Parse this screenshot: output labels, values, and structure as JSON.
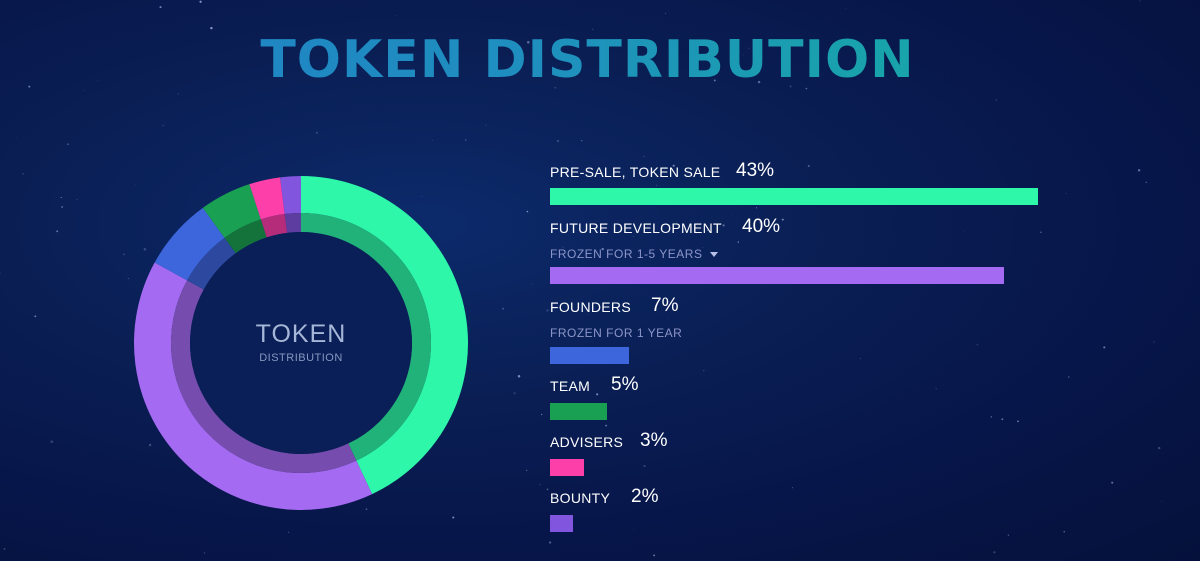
{
  "title": "TOKEN DISTRIBUTION",
  "center": {
    "big": "TOKEN",
    "small": "DISTRIBUTION"
  },
  "chart_data": {
    "type": "bar",
    "title": "TOKEN DISTRIBUTION",
    "categories": [
      "PRE-SALE, TOKEN SALE",
      "FUTURE DEVELOPMENT",
      "FOUNDERS",
      "TEAM",
      "ADVISERS",
      "BOUNTY"
    ],
    "values": [
      43,
      40,
      7,
      5,
      3,
      2
    ],
    "value_labels": [
      "43%",
      "40%",
      "7%",
      "5%",
      "3%",
      "2%"
    ],
    "notes": [
      "",
      "FROZEN FOR 1-5 YEARS",
      "FROZEN FOR 1 YEAR",
      "",
      "",
      ""
    ],
    "colors": [
      "#2ef7a9",
      "#a46bf2",
      "#3d66dd",
      "#1aa052",
      "#fc3fa9",
      "#8155dd"
    ],
    "donut": {
      "type": "pie",
      "order": [
        "PRE-SALE, TOKEN SALE",
        "FUTURE DEVELOPMENT",
        "FOUNDERS",
        "TEAM",
        "ADVISERS",
        "BOUNTY"
      ],
      "values": [
        43,
        40,
        7,
        5,
        3,
        2
      ]
    }
  }
}
